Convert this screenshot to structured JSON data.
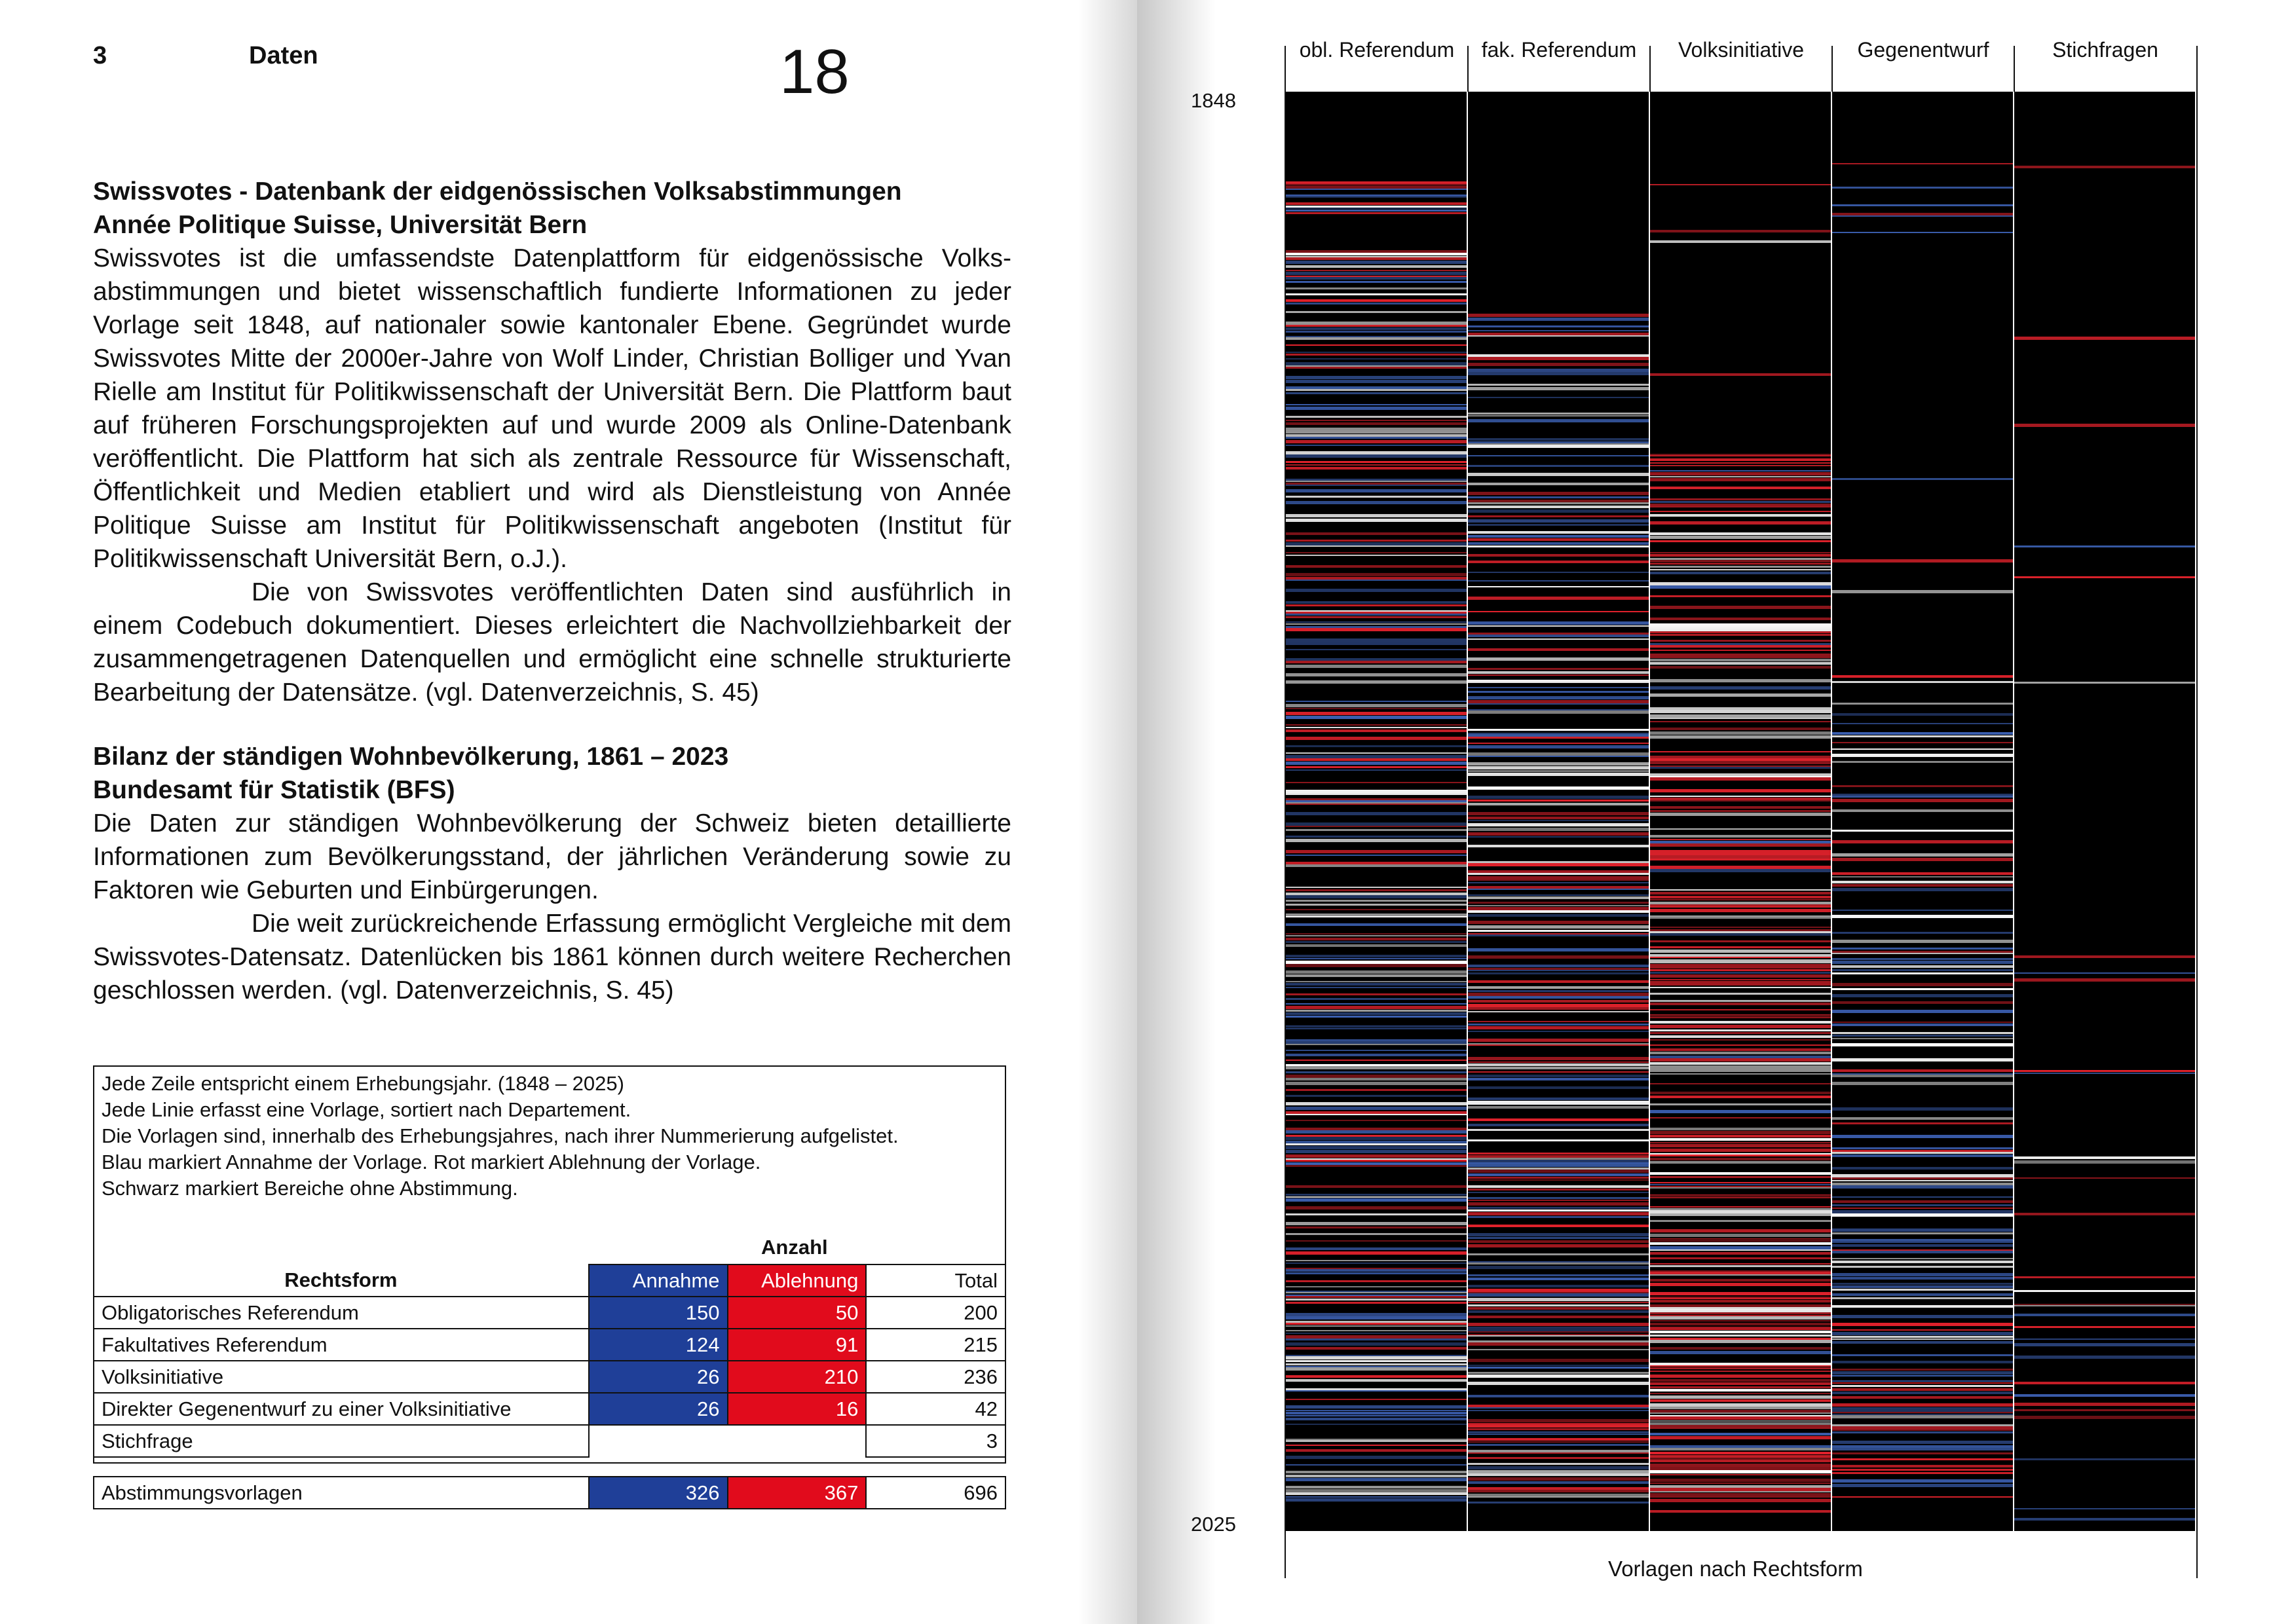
{
  "header": {
    "chapter_number": "3",
    "chapter_title": "Daten",
    "page_number": "18"
  },
  "section1": {
    "title": "Swissvotes - Datenbank der eidgenössischen Volksabstimmungen",
    "source": "Année Politique Suisse, Universität Bern",
    "para1": "Swissvotes ist die umfassendste Datenplattform für eidgenössische Volks­abstimmungen und bietet wissenschaftlich fundierte Informationen zu jeder Vorlage seit 1848, auf nationaler sowie kantonaler Ebene. Gegründet wurde Swissvotes Mitte der 2000er-Jahre von Wolf Linder, Christian Bolliger und Yvan Rielle am Institut für Politikwissenschaft der Universität Bern. Die Platt­form baut auf früheren Forschungsprojekten auf und wurde 2009 als Online-Datenbank veröffentlicht. Die Plattform hat sich als zentrale Ressource für Wissenschaft, Öffentlichkeit und Medien etabliert und wird als Dienstleis­tung von Année Politique Suisse am Institut für Politikwissenschaft angebo­ten (Institut für Politikwissenschaft Universität Bern, o.J.).",
    "para2": "Die von Swissvotes veröffentlichten Daten sind ausführlich in einem Codebuch dokumentiert. Dieses erleichtert die Nachvollziehbarkeit der zusammengetragenen Datenquellen und ermöglicht eine schnelle struk­turierte Bearbeitung der Datensätze. (vgl. Datenverzeichnis, S. 45)"
  },
  "section2": {
    "title": "Bilanz der ständigen Wohnbevölkerung, 1861 – 2023",
    "source": "Bundesamt für Statistik (BFS)",
    "para1": "Die Daten zur ständigen Wohnbevölkerung der Schweiz bieten detaillierte Informationen zum Bevölkerungsstand, der jährlichen Veränderung sowie zu Faktoren wie Geburten und Einbürgerungen.",
    "para2": "Die weit zurückreichende Erfassung ermöglicht Vergleiche mit dem Swissvotes-Datensatz. Datenlücken bis 1861 können durch weitere Re­cherchen geschlossen werden. (vgl. Datenverzeichnis, S. 45)"
  },
  "legend": {
    "notes": [
      "Jede Zeile entspricht einem Erhebungsjahr. (1848 – 2025)",
      "Jede Linie erfasst eine Vorlage, sortiert nach Departement.",
      "Die Vorlagen sind, innerhalb des Erhebungsjahres, nach ihrer Nummerierung aufgelistet.",
      "Blau markiert Annahme der Vorlage. Rot markiert Ablehnung der Vorlage.",
      "Schwarz markiert Bereiche ohne Abstimmung."
    ],
    "anzahl_label": "Anzahl",
    "col_rechtsform": "Rechtsform",
    "col_annahme": "Annahme",
    "col_ablehnung": "Ablehnung",
    "col_total": "Total",
    "rows": [
      {
        "name": "Obligatorisches Referendum",
        "annahme": "150",
        "ablehnung": "50",
        "total": "200"
      },
      {
        "name": "Fakultatives Referendum",
        "annahme": "124",
        "ablehnung": "91",
        "total": "215"
      },
      {
        "name": "Volksinitiative",
        "annahme": "26",
        "ablehnung": "210",
        "total": "236"
      },
      {
        "name": "Direkter Gegenentwurf zu einer Volksinitiative",
        "annahme": "26",
        "ablehnung": "16",
        "total": "42"
      },
      {
        "name": "Stichfrage",
        "annahme": "",
        "ablehnung": "",
        "total": "3"
      }
    ],
    "summary": {
      "name": "Abstimmungsvorlagen",
      "annahme": "326",
      "ablehnung": "367",
      "total": "696"
    }
  },
  "chart": {
    "columns": [
      "obl. Referendum",
      "fak. Referendum",
      "Volksinitiative",
      "Gegenentwurf",
      "Stichfragen"
    ],
    "year_start": "1848",
    "year_end": "2025",
    "x_label": "Vorlagen nach Rechtsform",
    "colors": {
      "background": "#000000",
      "accepted": "#3b5fb0",
      "rejected": "#e2222c",
      "separator": "#ffffff"
    }
  }
}
